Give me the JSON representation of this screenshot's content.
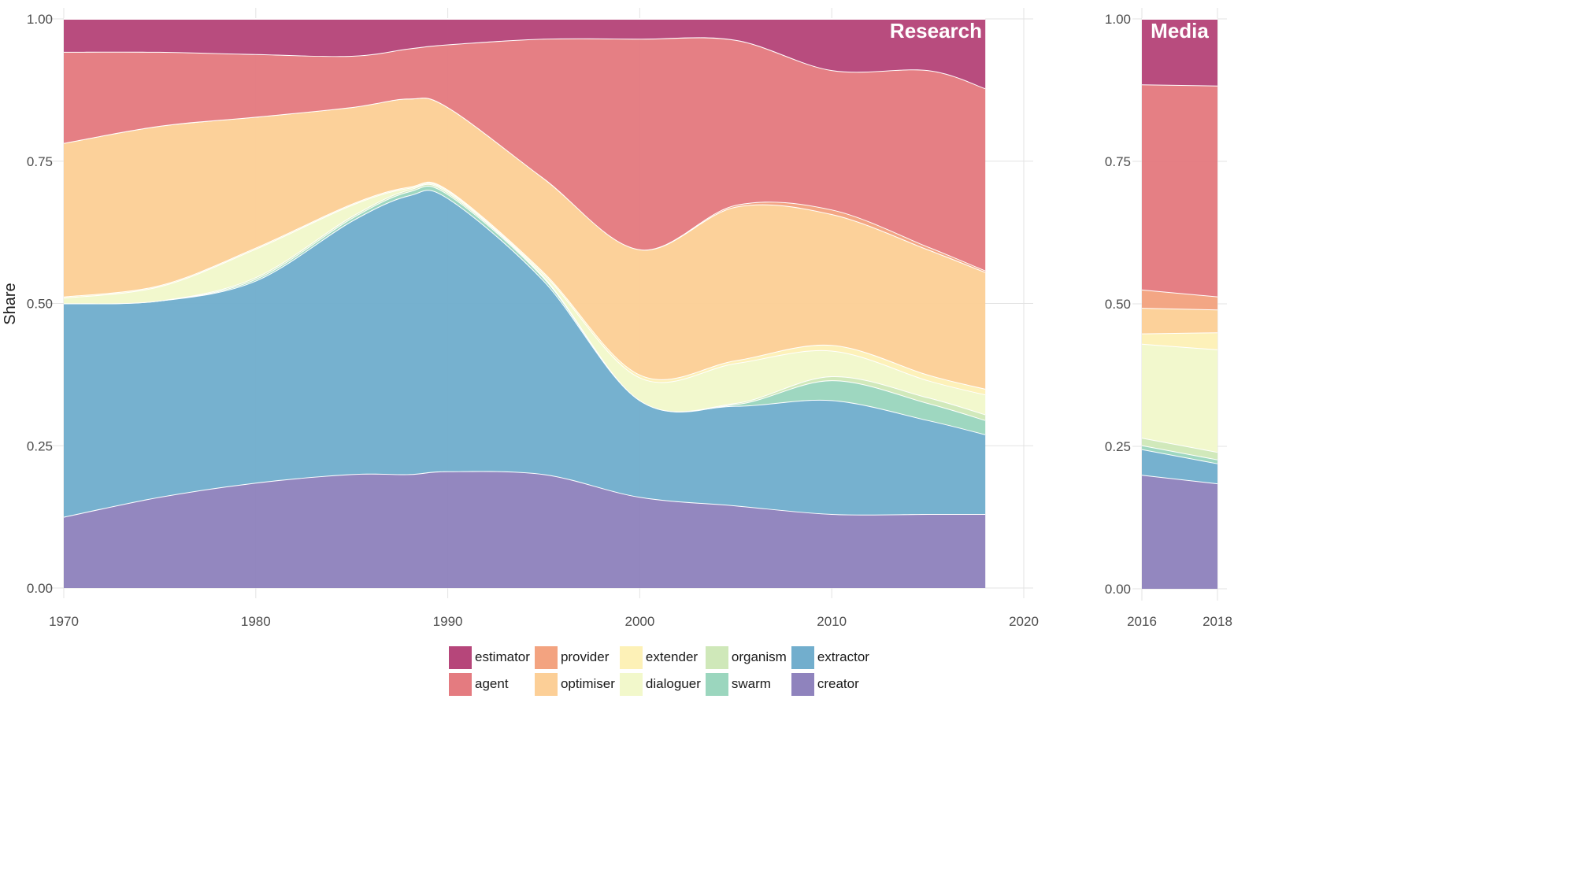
{
  "chart_data": [
    {
      "type": "area",
      "title": "Research",
      "xlabel": "",
      "ylabel": "Share",
      "xlim": [
        1970,
        2020
      ],
      "ylim": [
        0,
        1
      ],
      "x_ticks": [
        "1970",
        "1980",
        "1990",
        "2000",
        "2010",
        "2020"
      ],
      "y_ticks": [
        "0.00",
        "0.25",
        "0.50",
        "0.75",
        "1.00"
      ],
      "grid": true,
      "x": [
        1970,
        1975,
        1980,
        1985,
        1988,
        1990,
        1995,
        2000,
        2005,
        2010,
        2015,
        2018
      ],
      "series": [
        {
          "name": "creator",
          "values": [
            0.125,
            0.16,
            0.185,
            0.2,
            0.2,
            0.205,
            0.2,
            0.16,
            0.145,
            0.13,
            0.13,
            0.13
          ]
        },
        {
          "name": "extractor",
          "values": [
            0.375,
            0.345,
            0.355,
            0.445,
            0.49,
            0.48,
            0.34,
            0.17,
            0.175,
            0.2,
            0.165,
            0.14
          ]
        },
        {
          "name": "swarm",
          "values": [
            0.0,
            0.0,
            0.003,
            0.005,
            0.007,
            0.007,
            0.005,
            0.0,
            0.003,
            0.035,
            0.03,
            0.025
          ]
        },
        {
          "name": "organism",
          "values": [
            0.0,
            0.0,
            0.003,
            0.003,
            0.003,
            0.003,
            0.002,
            0.0,
            0.002,
            0.007,
            0.01,
            0.01
          ]
        },
        {
          "name": "dialoguer",
          "values": [
            0.01,
            0.025,
            0.05,
            0.02,
            0.003,
            0.003,
            0.005,
            0.04,
            0.07,
            0.045,
            0.03,
            0.035
          ]
        },
        {
          "name": "extender",
          "values": [
            0.002,
            0.002,
            0.002,
            0.002,
            0.002,
            0.002,
            0.003,
            0.005,
            0.005,
            0.01,
            0.01,
            0.01
          ]
        },
        {
          "name": "optimiser",
          "values": [
            0.27,
            0.28,
            0.23,
            0.17,
            0.155,
            0.145,
            0.165,
            0.22,
            0.27,
            0.23,
            0.22,
            0.205
          ]
        },
        {
          "name": "provider",
          "values": [
            0.0,
            0.0,
            0.0,
            0.0,
            0.0,
            0.0,
            0.0,
            0.0,
            0.003,
            0.008,
            0.005,
            0.003
          ]
        },
        {
          "name": "agent",
          "values": [
            0.16,
            0.13,
            0.11,
            0.09,
            0.088,
            0.11,
            0.245,
            0.37,
            0.29,
            0.245,
            0.31,
            0.32
          ]
        },
        {
          "name": "estimator",
          "values": [
            0.058,
            0.058,
            0.062,
            0.065,
            0.052,
            0.045,
            0.035,
            0.035,
            0.037,
            0.09,
            0.09,
            0.122
          ]
        }
      ]
    },
    {
      "type": "area",
      "title": "Media",
      "xlabel": "",
      "ylabel": "",
      "xlim": [
        2016,
        2018
      ],
      "ylim": [
        0,
        1
      ],
      "x_ticks": [
        "2016",
        "2018"
      ],
      "y_ticks": [
        "0.00",
        "0.25",
        "0.50",
        "0.75",
        "1.00"
      ],
      "grid": true,
      "x": [
        2016,
        2018
      ],
      "series": [
        {
          "name": "creator",
          "values": [
            0.2,
            0.185
          ]
        },
        {
          "name": "extractor",
          "values": [
            0.045,
            0.035
          ]
        },
        {
          "name": "swarm",
          "values": [
            0.007,
            0.007
          ]
        },
        {
          "name": "organism",
          "values": [
            0.013,
            0.013
          ]
        },
        {
          "name": "dialoguer",
          "values": [
            0.165,
            0.18
          ]
        },
        {
          "name": "extender",
          "values": [
            0.018,
            0.03
          ]
        },
        {
          "name": "optimiser",
          "values": [
            0.045,
            0.04
          ]
        },
        {
          "name": "provider",
          "values": [
            0.032,
            0.023
          ]
        },
        {
          "name": "agent",
          "values": [
            0.36,
            0.37
          ]
        },
        {
          "name": "estimator",
          "values": [
            0.115,
            0.117
          ]
        }
      ]
    }
  ],
  "legend": {
    "placement": "bottom",
    "items": [
      {
        "name": "estimator",
        "color": "#b6467a"
      },
      {
        "name": "provider",
        "color": "#f3a380"
      },
      {
        "name": "extender",
        "color": "#fdf1b7"
      },
      {
        "name": "organism",
        "color": "#cfe8b9"
      },
      {
        "name": "extractor",
        "color": "#72aecd"
      },
      {
        "name": "agent",
        "color": "#e47b80"
      },
      {
        "name": "optimiser",
        "color": "#fccf97"
      },
      {
        "name": "dialoguer",
        "color": "#f2f8cb"
      },
      {
        "name": "swarm",
        "color": "#9bd6be"
      },
      {
        "name": "creator",
        "color": "#8f83bd"
      }
    ]
  }
}
